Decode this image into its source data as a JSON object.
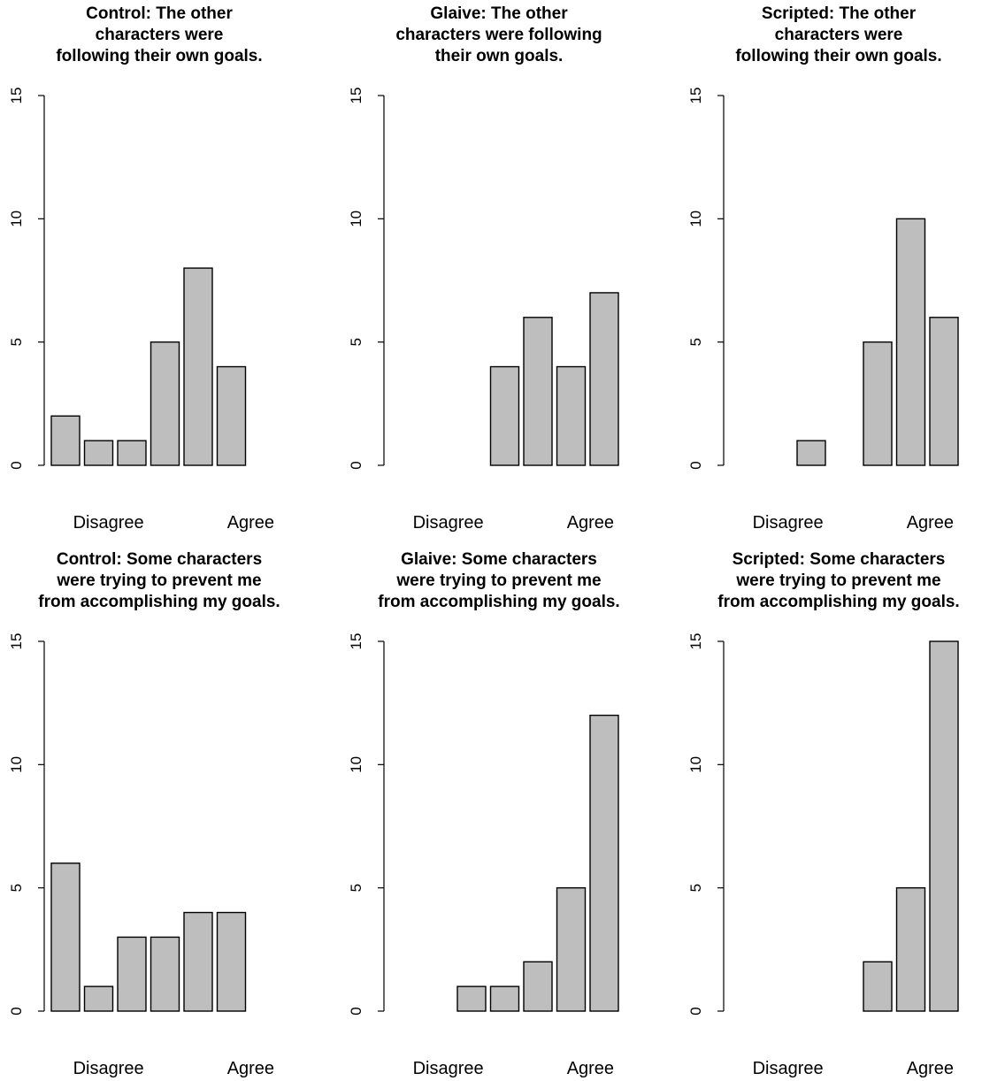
{
  "chart_data": [
    {
      "type": "bar",
      "title": [
        "Control: The other",
        "characters were",
        "following their own goals."
      ],
      "categories": [
        "1",
        "2",
        "3",
        "4",
        "5",
        "6",
        "7"
      ],
      "values": [
        2,
        1,
        1,
        5,
        8,
        4,
        0
      ],
      "x_labels": {
        "left": "Disagree",
        "right": "Agree"
      },
      "ylim": [
        0,
        15
      ],
      "yticks": [
        0,
        5,
        10,
        15
      ],
      "bar_color": "#bebebe"
    },
    {
      "type": "bar",
      "title": [
        "Glaive: The other",
        "characters were following",
        "their own goals."
      ],
      "categories": [
        "1",
        "2",
        "3",
        "4",
        "5",
        "6",
        "7"
      ],
      "values": [
        0,
        0,
        0,
        4,
        6,
        4,
        7
      ],
      "x_labels": {
        "left": "Disagree",
        "right": "Agree"
      },
      "ylim": [
        0,
        15
      ],
      "yticks": [
        0,
        5,
        10,
        15
      ],
      "bar_color": "#bebebe"
    },
    {
      "type": "bar",
      "title": [
        "Scripted: The other",
        "characters were",
        "following their own goals."
      ],
      "categories": [
        "1",
        "2",
        "3",
        "4",
        "5",
        "6",
        "7"
      ],
      "values": [
        0,
        0,
        1,
        0,
        5,
        10,
        6
      ],
      "x_labels": {
        "left": "Disagree",
        "right": "Agree"
      },
      "ylim": [
        0,
        15
      ],
      "yticks": [
        0,
        5,
        10,
        15
      ],
      "bar_color": "#bebebe"
    },
    {
      "type": "bar",
      "title": [
        "Control: Some characters",
        "were trying to prevent me",
        "from accomplishing my goals."
      ],
      "categories": [
        "1",
        "2",
        "3",
        "4",
        "5",
        "6",
        "7"
      ],
      "values": [
        6,
        1,
        3,
        3,
        4,
        4,
        0
      ],
      "x_labels": {
        "left": "Disagree",
        "right": "Agree"
      },
      "ylim": [
        0,
        15
      ],
      "yticks": [
        0,
        5,
        10,
        15
      ],
      "bar_color": "#bebebe"
    },
    {
      "type": "bar",
      "title": [
        "Glaive: Some characters",
        "were trying to prevent me",
        "from accomplishing my goals."
      ],
      "categories": [
        "1",
        "2",
        "3",
        "4",
        "5",
        "6",
        "7"
      ],
      "values": [
        0,
        0,
        1,
        1,
        2,
        5,
        12
      ],
      "x_labels": {
        "left": "Disagree",
        "right": "Agree"
      },
      "ylim": [
        0,
        15
      ],
      "yticks": [
        0,
        5,
        10,
        15
      ],
      "bar_color": "#bebebe"
    },
    {
      "type": "bar",
      "title": [
        "Scripted: Some characters",
        "were trying to prevent me",
        "from accomplishing my goals."
      ],
      "categories": [
        "1",
        "2",
        "3",
        "4",
        "5",
        "6",
        "7"
      ],
      "values": [
        0,
        0,
        0,
        0,
        2,
        5,
        15
      ],
      "x_labels": {
        "left": "Disagree",
        "right": "Agree"
      },
      "ylim": [
        0,
        15
      ],
      "yticks": [
        0,
        5,
        10,
        15
      ],
      "bar_color": "#bebebe"
    }
  ]
}
